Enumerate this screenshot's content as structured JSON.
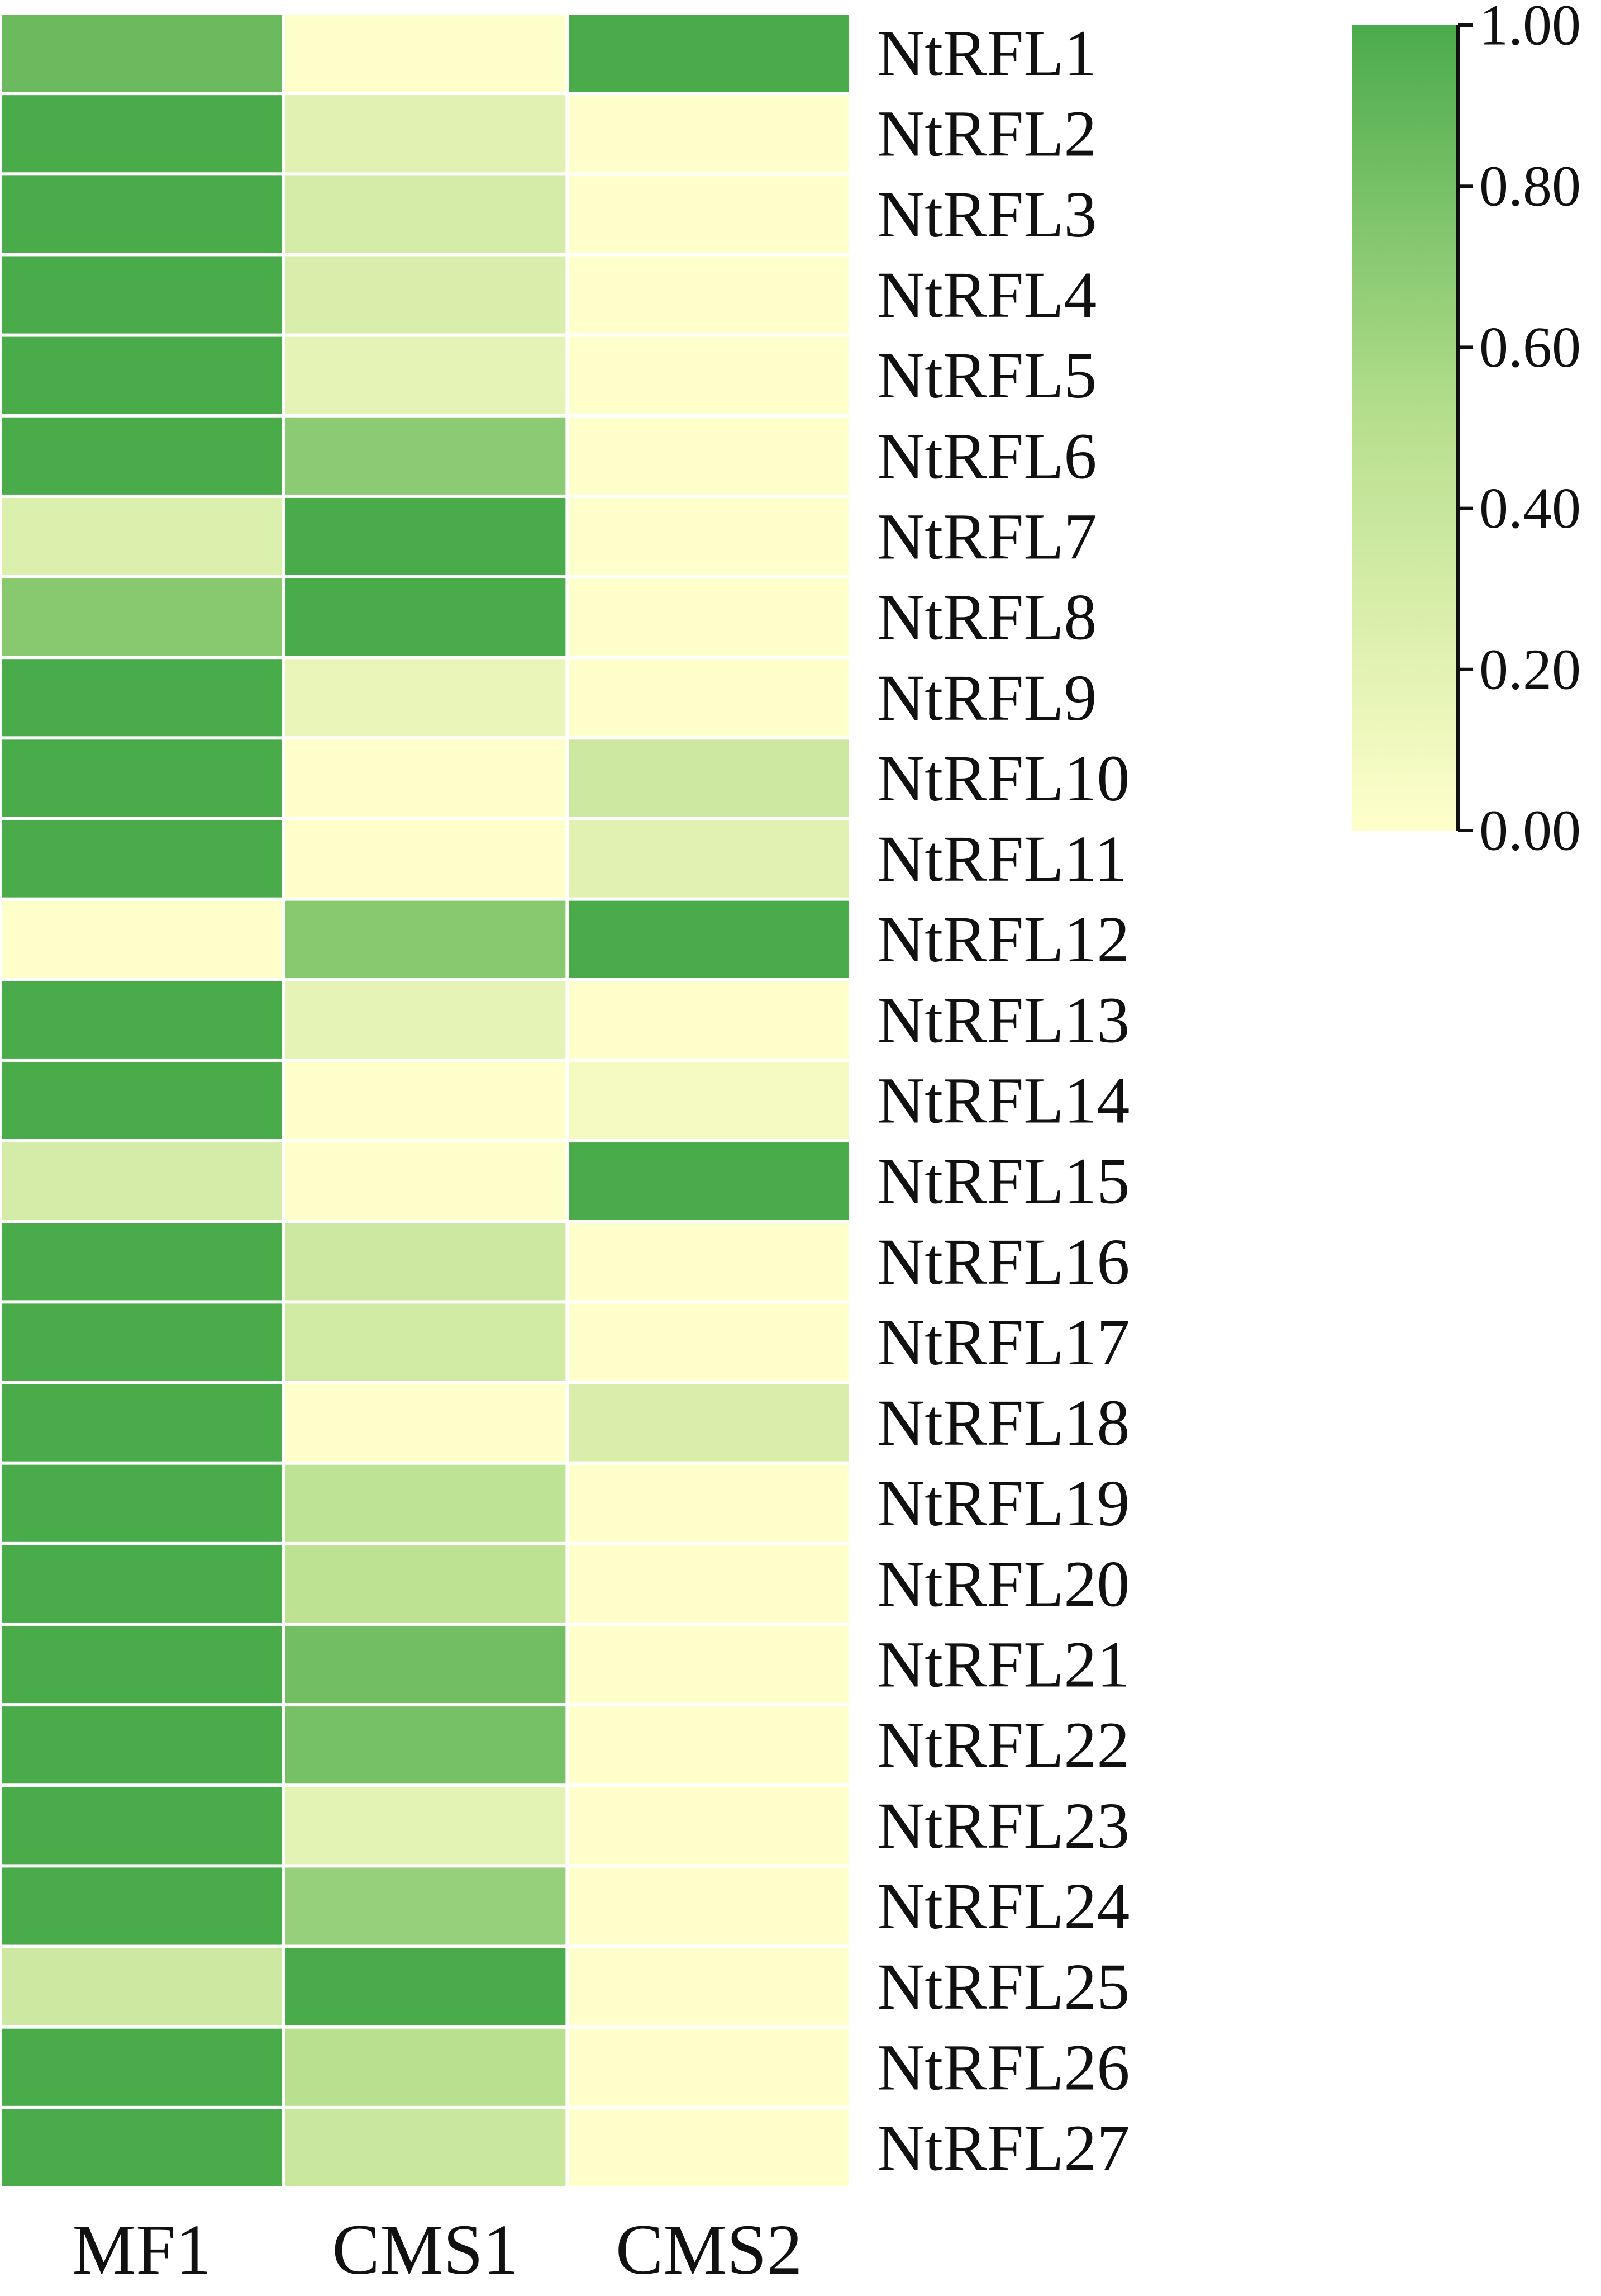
{
  "chart_data": {
    "type": "heatmap",
    "title": "",
    "xlabel": "",
    "ylabel": "",
    "columns": [
      "MF1",
      "CMS1",
      "CMS2"
    ],
    "rows": [
      "NtRFL1",
      "NtRFL2",
      "NtRFL3",
      "NtRFL4",
      "NtRFL5",
      "NtRFL6",
      "NtRFL7",
      "NtRFL8",
      "NtRFL9",
      "NtRFL10",
      "NtRFL11",
      "NtRFL12",
      "NtRFL13",
      "NtRFL14",
      "NtRFL15",
      "NtRFL16",
      "NtRFL17",
      "NtRFL18",
      "NtRFL19",
      "NtRFL20",
      "NtRFL21",
      "NtRFL22",
      "NtRFL23",
      "NtRFL24",
      "NtRFL25",
      "NtRFL26",
      "NtRFL27"
    ],
    "values": [
      [
        0.85,
        0.0,
        1.0
      ],
      [
        1.0,
        0.22,
        0.0
      ],
      [
        1.0,
        0.3,
        0.0
      ],
      [
        1.0,
        0.27,
        0.0
      ],
      [
        1.0,
        0.18,
        0.0
      ],
      [
        1.0,
        0.7,
        0.0
      ],
      [
        0.25,
        1.0,
        0.0
      ],
      [
        0.72,
        1.0,
        0.0
      ],
      [
        1.0,
        0.15,
        0.0
      ],
      [
        1.0,
        0.0,
        0.35
      ],
      [
        1.0,
        0.0,
        0.22
      ],
      [
        0.0,
        0.72,
        1.0
      ],
      [
        1.0,
        0.18,
        0.0
      ],
      [
        1.0,
        0.0,
        0.08
      ],
      [
        0.3,
        0.0,
        1.0
      ],
      [
        1.0,
        0.35,
        0.0
      ],
      [
        1.0,
        0.32,
        0.0
      ],
      [
        1.0,
        0.0,
        0.27
      ],
      [
        1.0,
        0.45,
        0.0
      ],
      [
        1.0,
        0.47,
        0.0
      ],
      [
        1.0,
        0.82,
        0.0
      ],
      [
        1.0,
        0.8,
        0.0
      ],
      [
        1.0,
        0.2,
        0.0
      ],
      [
        1.0,
        0.65,
        0.0
      ],
      [
        0.35,
        1.0,
        0.0
      ],
      [
        1.0,
        0.5,
        0.0
      ],
      [
        1.0,
        0.38,
        0.0
      ]
    ],
    "colorbar": {
      "min": 0.0,
      "max": 1.0,
      "ticks": [
        1.0,
        0.8,
        0.6,
        0.4,
        0.2,
        0.0
      ],
      "tick_labels": [
        "1.00",
        "0.80",
        "0.60",
        "0.40",
        "0.20",
        "0.00"
      ],
      "color_low": "#ffffcc",
      "color_high": "#4aab4a"
    },
    "grid_color": "#ffffff",
    "legend_placement": "top-right"
  }
}
